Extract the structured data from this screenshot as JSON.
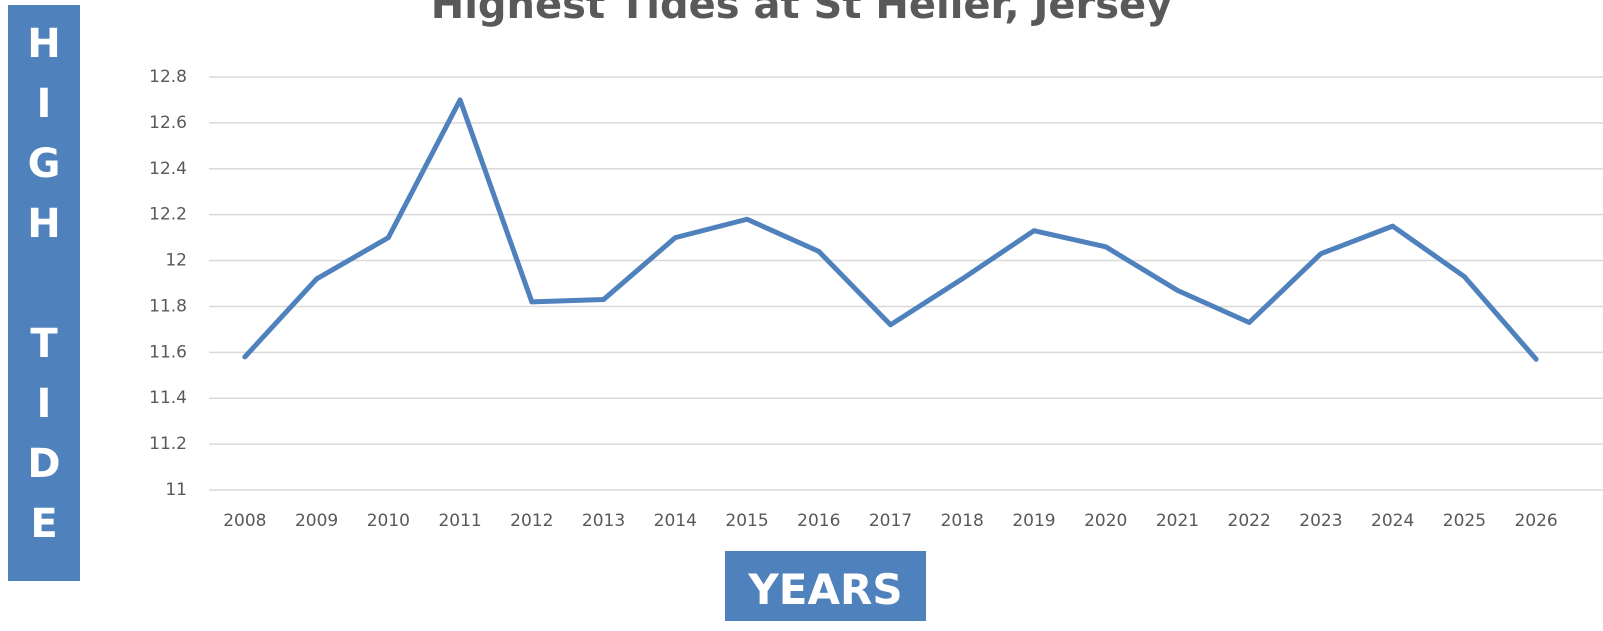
{
  "chart_data": {
    "type": "line",
    "title": "Highest Tides at St Helier, Jersey",
    "y_label": "HIGH TIDE m",
    "x_label": "YEARS",
    "categories": [
      "2008",
      "2009",
      "2010",
      "2011",
      "2012",
      "2013",
      "2014",
      "2015",
      "2016",
      "2017",
      "2018",
      "2019",
      "2020",
      "2021",
      "2022",
      "2023",
      "2024",
      "2025",
      "2026"
    ],
    "values": [
      11.58,
      11.92,
      12.1,
      12.7,
      11.82,
      11.83,
      12.1,
      12.18,
      12.04,
      11.72,
      11.92,
      12.13,
      12.06,
      11.87,
      11.73,
      12.03,
      12.15,
      11.93,
      11.57
    ],
    "color": "#4f81bd",
    "ylim": [
      11,
      12.8
    ],
    "yticks": [
      11,
      11.2,
      11.4,
      11.6,
      11.8,
      12,
      12.2,
      12.4,
      12.6,
      12.8
    ],
    "grid": true
  }
}
